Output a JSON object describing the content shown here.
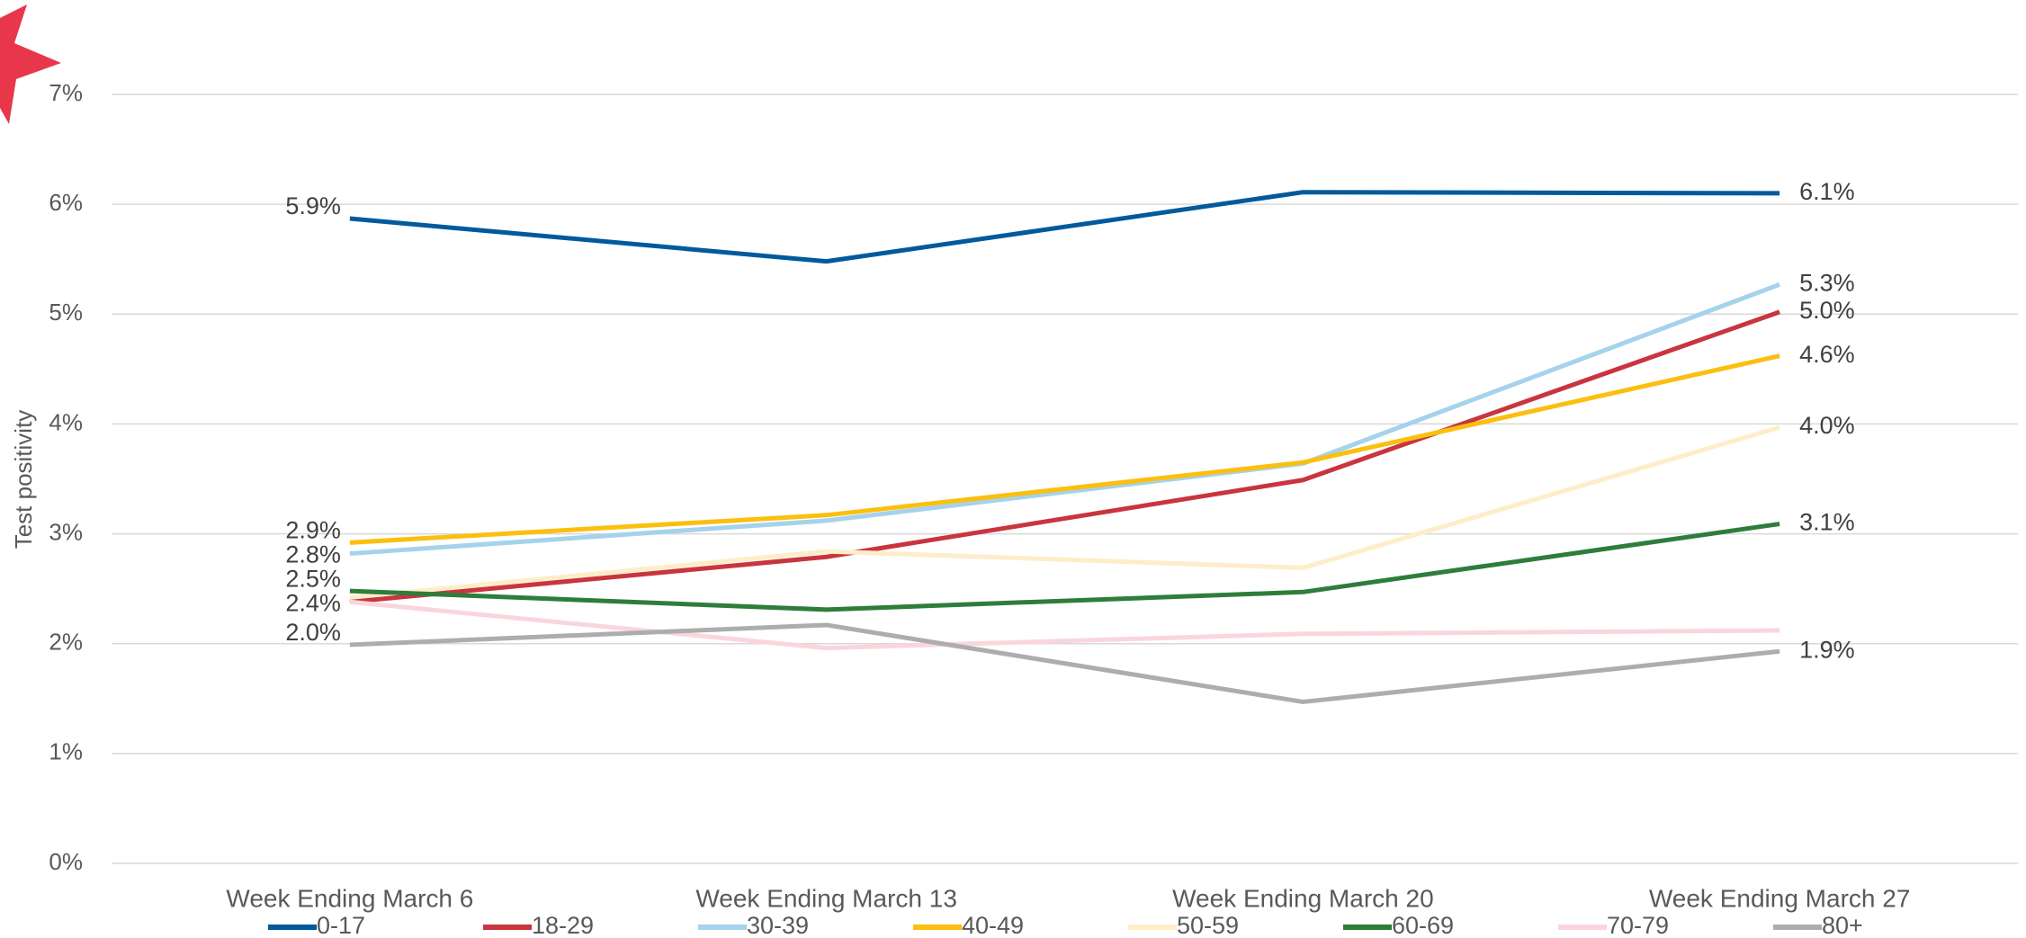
{
  "chart_data": {
    "type": "line",
    "y_label": "Test positivity",
    "categories": [
      "Week Ending March 6",
      "Week Ending March 13",
      "Week Ending March 20",
      "Week Ending March 27"
    ],
    "ylim": [
      0,
      7
    ],
    "yticks": [
      {
        "value": 0,
        "label": "0%"
      },
      {
        "value": 1,
        "label": "1%"
      },
      {
        "value": 2,
        "label": "2%"
      },
      {
        "value": 3,
        "label": "3%"
      },
      {
        "value": 4,
        "label": "4%"
      },
      {
        "value": 5,
        "label": "5%"
      },
      {
        "value": 6,
        "label": "6%"
      },
      {
        "value": 7,
        "label": "7%"
      }
    ],
    "grid": true,
    "legend": "bottom",
    "series": [
      {
        "name": "0-17",
        "color": "#005a9c",
        "values": [
          5.87,
          5.48,
          6.11,
          6.1
        ],
        "value_labels": [
          "5.9%",
          null,
          null,
          "6.1%"
        ]
      },
      {
        "name": "18-29",
        "color": "#c9353f",
        "values": [
          2.38,
          2.79,
          3.49,
          5.02
        ],
        "value_labels": [
          "2.4%",
          null,
          null,
          "5.0%"
        ]
      },
      {
        "name": "30-39",
        "color": "#a5d2ec",
        "values": [
          2.82,
          3.12,
          3.64,
          5.27
        ],
        "value_labels": [
          "2.8%",
          null,
          null,
          "5.3%"
        ]
      },
      {
        "name": "40-49",
        "color": "#fbbf0f",
        "values": [
          2.92,
          3.17,
          3.65,
          4.62
        ],
        "value_labels": [
          "2.9%",
          null,
          null,
          "4.6%"
        ]
      },
      {
        "name": "50-59",
        "color": "#fdeec9",
        "values": [
          2.42,
          2.84,
          2.69,
          3.97
        ],
        "value_labels": [
          null,
          null,
          null,
          "4.0%"
        ]
      },
      {
        "name": "60-69",
        "color": "#2e7d3a",
        "values": [
          2.48,
          2.31,
          2.47,
          3.09
        ],
        "value_labels": [
          "2.5%",
          null,
          null,
          "3.1%"
        ]
      },
      {
        "name": "70-79",
        "color": "#fad6dc",
        "values": [
          2.38,
          1.96,
          2.09,
          2.12
        ],
        "value_labels": [
          null,
          null,
          null,
          null
        ]
      },
      {
        "name": "80+",
        "color": "#adadad",
        "values": [
          1.99,
          2.17,
          1.47,
          1.93
        ],
        "value_labels": [
          "2.0%",
          null,
          null,
          "1.9%"
        ]
      }
    ]
  }
}
